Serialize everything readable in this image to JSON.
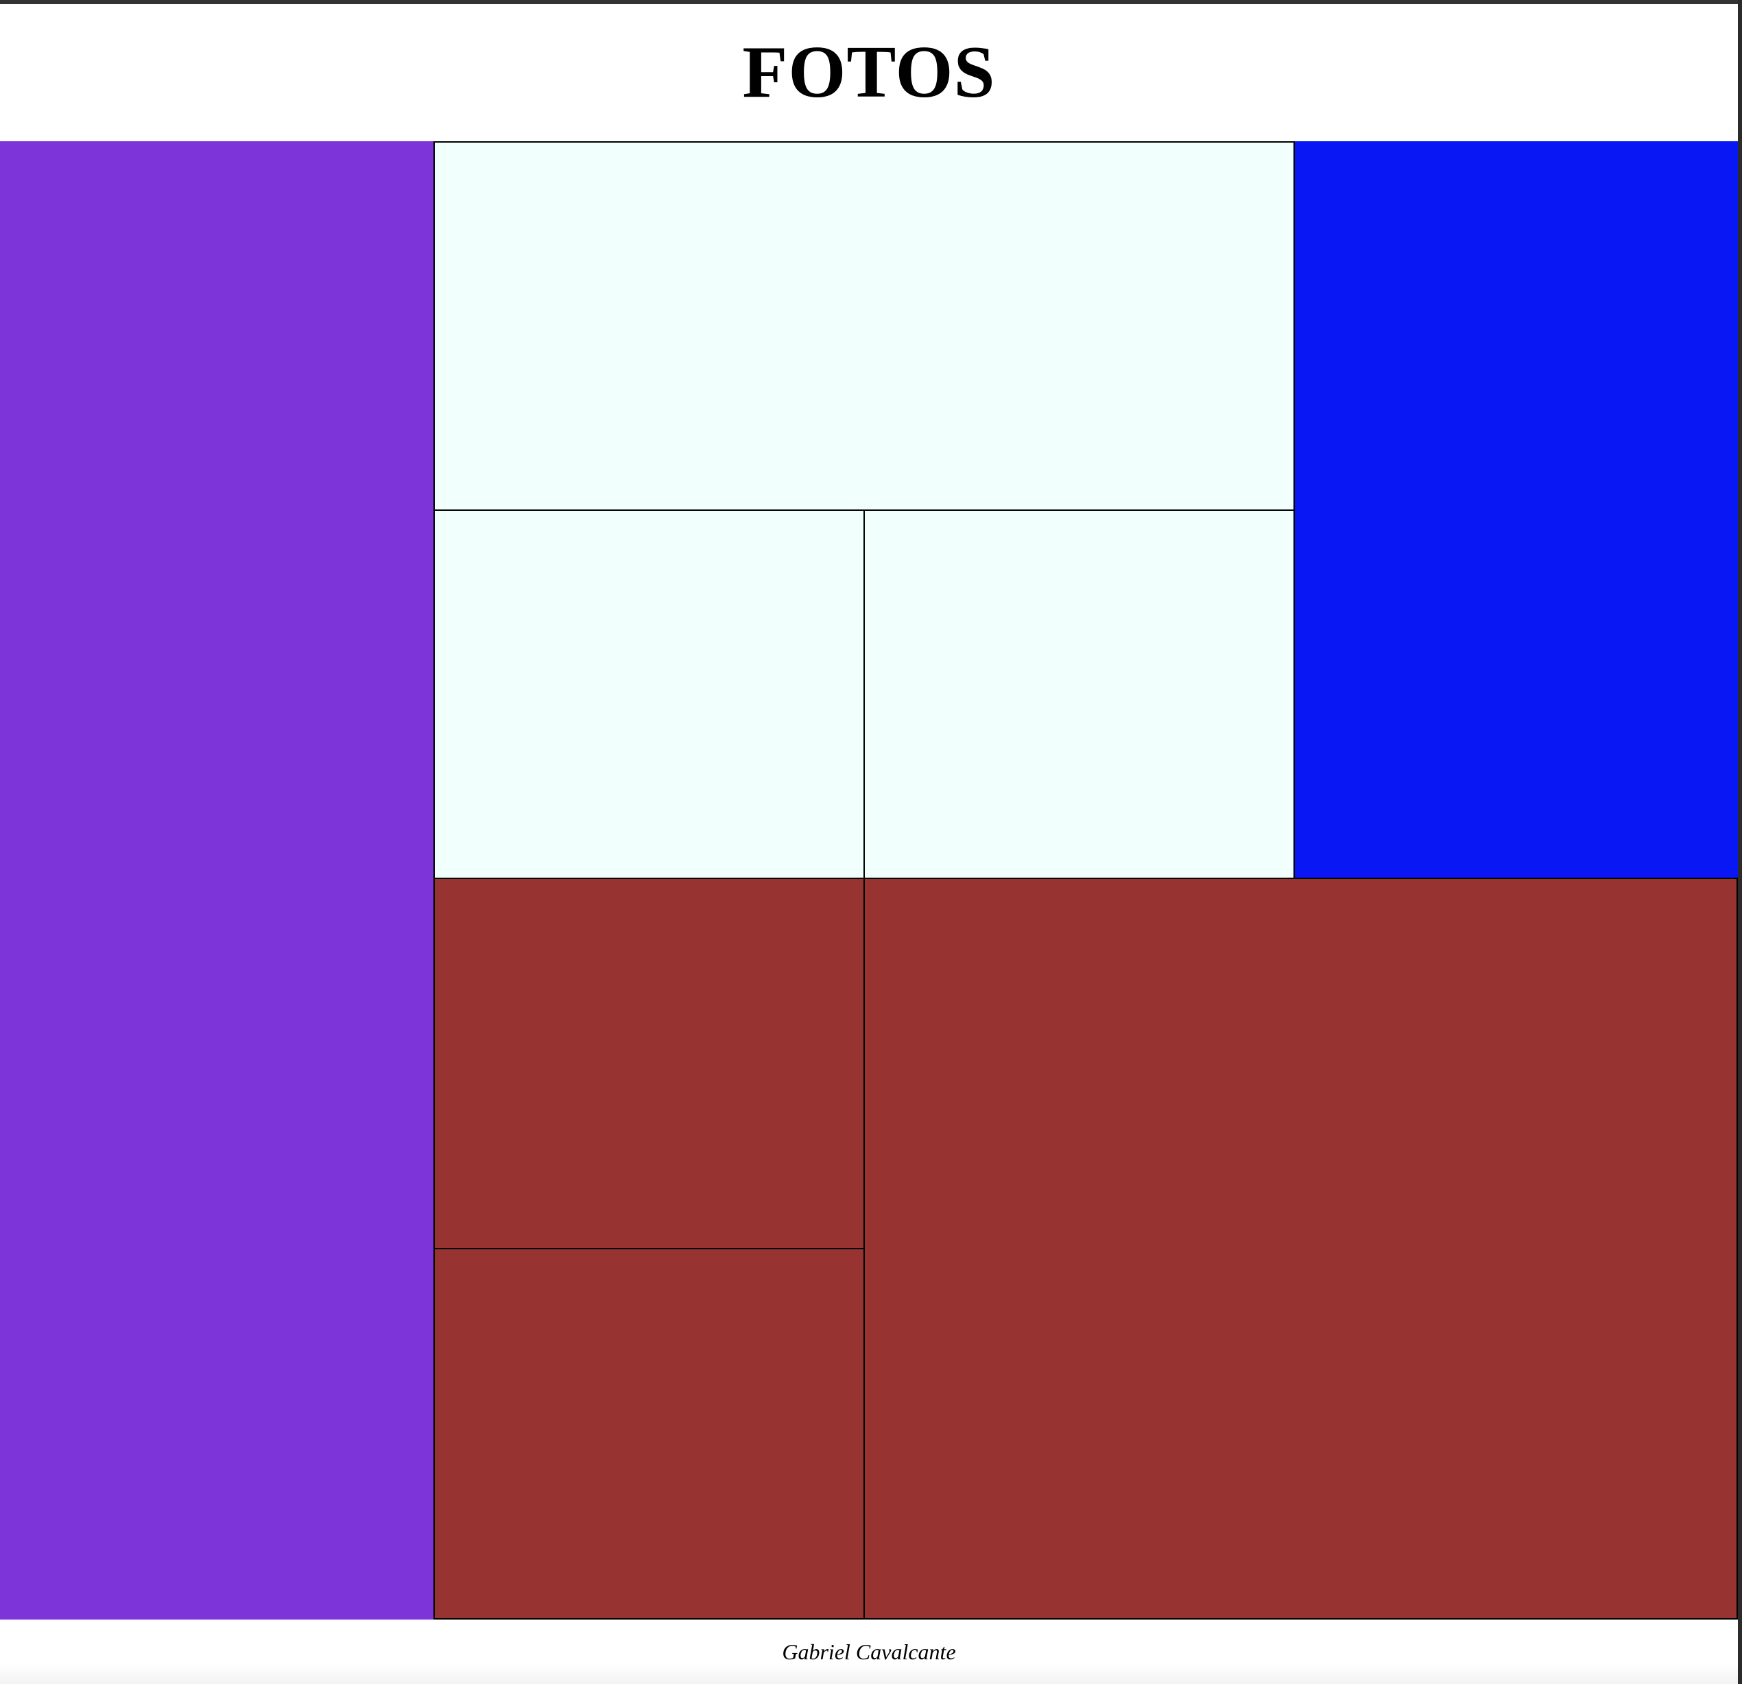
{
  "header": {
    "title": "FOTOS"
  },
  "gallery": {
    "tiles": [
      {
        "name": "tile-left",
        "color": "#7d35d9"
      },
      {
        "name": "tile-top-wide",
        "color": "#f1fffd"
      },
      {
        "name": "tile-mid-a",
        "color": "#f1fffd"
      },
      {
        "name": "tile-mid-b",
        "color": "#f1fffd"
      },
      {
        "name": "tile-right",
        "color": "#0a17f5"
      },
      {
        "name": "tile-low-a",
        "color": "#973431"
      },
      {
        "name": "tile-low-b",
        "color": "#973431"
      },
      {
        "name": "tile-low-wide",
        "color": "#973431"
      }
    ]
  },
  "footer": {
    "credit": "Gabriel Cavalcante"
  }
}
